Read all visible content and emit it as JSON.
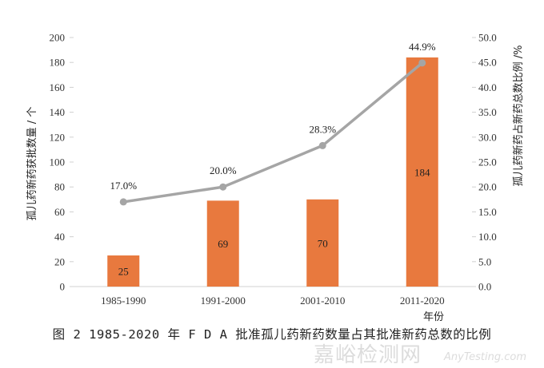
{
  "chart_data": {
    "type": "bar+line",
    "categories": [
      "1985-1990",
      "1991-2000",
      "2001-2010",
      "2011-2020"
    ],
    "series": [
      {
        "name": "孤儿药新药获批数量",
        "type": "bar",
        "axis": "left",
        "values": [
          25,
          69,
          70,
          184
        ],
        "labels": [
          "25",
          "69",
          "70",
          "184"
        ],
        "color": "#E8793E"
      },
      {
        "name": "孤儿药新药占新药总数比例",
        "type": "line",
        "axis": "right",
        "values": [
          17.0,
          20.0,
          28.3,
          44.9
        ],
        "labels": [
          "17.0%",
          "20.0%",
          "28.3%",
          "44.9%"
        ],
        "color": "#A5A5A5"
      }
    ],
    "ylabel": "孤儿药新药获批数量 / 个",
    "y2label": "孤儿药新药占新药总数比例 /%",
    "xlabel": "年份",
    "ylim": [
      0,
      200
    ],
    "y2lim": [
      0,
      50
    ],
    "yticks": [
      "0",
      "20",
      "40",
      "60",
      "80",
      "100",
      "120",
      "140",
      "160",
      "180",
      "200"
    ],
    "y2ticks": [
      "0.0",
      "5.0",
      "10.0",
      "15.0",
      "20.0",
      "25.0",
      "30.0",
      "35.0",
      "40.0",
      "45.0",
      "50.0"
    ],
    "grid": false
  },
  "caption": "图 2  1985-2020 年 F D A  批准孤儿药新药数量占其批准新药总数的比例",
  "watermark": {
    "cn": "嘉峪检测网",
    "en": "AnyTesting.com"
  }
}
